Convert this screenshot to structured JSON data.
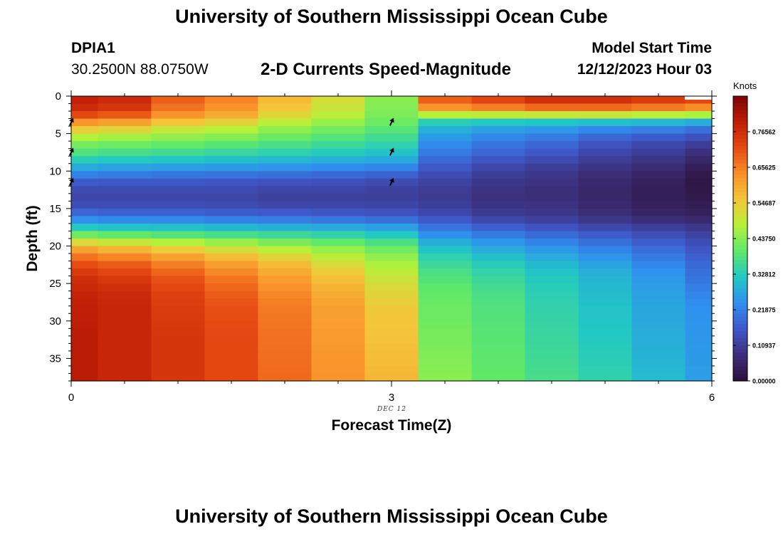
{
  "page": {
    "title": "University of Southern Mississippi Ocean Cube",
    "bottom_title": "University of Southern Mississippi Ocean Cube"
  },
  "station": {
    "id": "DPIA1",
    "coords": "30.2500N  88.0750W"
  },
  "subtitle": "2-D Currents Speed-Magnitude",
  "model": {
    "label": "Model Start Time",
    "value": "12/12/2023 Hour 03"
  },
  "colors": {
    "ramp": [
      "#2b0f36",
      "#3c2f7a",
      "#3f57c8",
      "#2f8ff0",
      "#22c8c4",
      "#5ee86a",
      "#b4f23a",
      "#f4c63a",
      "#f98f2a",
      "#e64a12",
      "#bf1d06",
      "#7a0403"
    ],
    "cap": "#ffffff",
    "arrow": "#000000"
  },
  "chart_data": {
    "type": "heatmap",
    "title": "2-D Currents Speed-Magnitude",
    "xlabel": "Forecast Time(Z)",
    "ylabel": "Depth (ft)",
    "x_ticks": [
      "0",
      "3",
      "6"
    ],
    "x_tick_values": [
      0,
      3,
      6
    ],
    "date_label": "DEC 12",
    "y_ticks": [
      "0",
      "5",
      "10",
      "15",
      "20",
      "25",
      "30",
      "35"
    ],
    "y_tick_values": [
      0,
      5,
      10,
      15,
      20,
      25,
      30,
      35
    ],
    "xlim": [
      0,
      6
    ],
    "ylim": [
      0,
      38
    ],
    "colorbar": {
      "label": "Knots",
      "ticks": [
        "0.00000",
        "0.10937",
        "0.21875",
        "0.32812",
        "0.43750",
        "0.54687",
        "0.65625",
        "0.76562"
      ],
      "range": [
        0,
        0.875
      ]
    },
    "time_columns": [
      0.25,
      0.75,
      1.25,
      1.75,
      2.25,
      2.75,
      3.25,
      3.75,
      4.25,
      4.75,
      5.25,
      5.75
    ],
    "profiles": {
      "depths": [
        0,
        2,
        3,
        4,
        6,
        8,
        9,
        10,
        11,
        12,
        14,
        16,
        17,
        18,
        20,
        22,
        24,
        26,
        28,
        32,
        38
      ],
      "surface": [
        0.8,
        0.76,
        0.68,
        0.58,
        0.44,
        0.36,
        0.3,
        0.25,
        0.19,
        0.14,
        0.12,
        0.2,
        0.28,
        0.36,
        0.58,
        0.7,
        0.76,
        0.78,
        0.79,
        0.8,
        0.8
      ],
      "columns": [
        {
          "vals": [
            0.78,
            0.74,
            0.66,
            0.56,
            0.43,
            0.35,
            0.29,
            0.24,
            0.18,
            0.14,
            0.12,
            0.19,
            0.27,
            0.35,
            0.55,
            0.68,
            0.74,
            0.77,
            0.78,
            0.78,
            0.78
          ]
        },
        {
          "vals": [
            0.7,
            0.66,
            0.6,
            0.52,
            0.42,
            0.34,
            0.29,
            0.23,
            0.18,
            0.14,
            0.12,
            0.19,
            0.27,
            0.34,
            0.52,
            0.64,
            0.7,
            0.73,
            0.74,
            0.75,
            0.75
          ]
        },
        {
          "vals": [
            0.66,
            0.62,
            0.57,
            0.5,
            0.41,
            0.33,
            0.28,
            0.23,
            0.17,
            0.14,
            0.12,
            0.18,
            0.26,
            0.33,
            0.49,
            0.6,
            0.66,
            0.69,
            0.71,
            0.72,
            0.72
          ]
        },
        {
          "vals": [
            0.58,
            0.55,
            0.51,
            0.46,
            0.39,
            0.32,
            0.27,
            0.22,
            0.17,
            0.13,
            0.11,
            0.18,
            0.25,
            0.32,
            0.46,
            0.56,
            0.61,
            0.64,
            0.66,
            0.67,
            0.68
          ]
        },
        {
          "vals": [
            0.52,
            0.5,
            0.47,
            0.43,
            0.37,
            0.31,
            0.26,
            0.21,
            0.16,
            0.13,
            0.11,
            0.17,
            0.24,
            0.31,
            0.43,
            0.51,
            0.56,
            0.59,
            0.61,
            0.62,
            0.63
          ]
        },
        {
          "vals": [
            0.44,
            0.43,
            0.42,
            0.4,
            0.35,
            0.3,
            0.25,
            0.2,
            0.15,
            0.12,
            0.11,
            0.16,
            0.23,
            0.29,
            0.4,
            0.46,
            0.5,
            0.53,
            0.55,
            0.56,
            0.58
          ]
        },
        {
          "vals": [
            0.72,
            0.6,
            0.36,
            0.3,
            0.24,
            0.2,
            0.17,
            0.15,
            0.13,
            0.11,
            0.1,
            0.14,
            0.18,
            0.22,
            0.3,
            0.35,
            0.38,
            0.4,
            0.41,
            0.42,
            0.44
          ]
        },
        {
          "vals": [
            0.76,
            0.62,
            0.36,
            0.28,
            0.21,
            0.17,
            0.14,
            0.12,
            0.1,
            0.09,
            0.08,
            0.11,
            0.15,
            0.19,
            0.27,
            0.32,
            0.35,
            0.37,
            0.38,
            0.39,
            0.4
          ]
        },
        {
          "vals": [
            0.8,
            0.64,
            0.36,
            0.27,
            0.19,
            0.15,
            0.12,
            0.1,
            0.09,
            0.08,
            0.08,
            0.1,
            0.13,
            0.17,
            0.24,
            0.29,
            0.32,
            0.33,
            0.34,
            0.35,
            0.37
          ]
        },
        {
          "vals": [
            0.8,
            0.64,
            0.36,
            0.25,
            0.16,
            0.12,
            0.1,
            0.08,
            0.07,
            0.06,
            0.06,
            0.08,
            0.11,
            0.15,
            0.21,
            0.26,
            0.29,
            0.3,
            0.31,
            0.32,
            0.34
          ]
        },
        {
          "vals": [
            0.78,
            0.62,
            0.35,
            0.24,
            0.14,
            0.1,
            0.08,
            0.06,
            0.05,
            0.04,
            0.04,
            0.06,
            0.09,
            0.13,
            0.18,
            0.22,
            0.25,
            0.26,
            0.27,
            0.28,
            0.3
          ]
        },
        {
          "vals": [
            0.76,
            0.6,
            0.34,
            0.22,
            0.12,
            0.07,
            0.05,
            0.03,
            0.02,
            0.02,
            0.03,
            0.05,
            0.08,
            0.11,
            0.15,
            0.18,
            0.2,
            0.22,
            0.24,
            0.25,
            0.26
          ]
        }
      ]
    },
    "vectors": [
      {
        "time": 0,
        "depth": 3.5,
        "direction": "north-northeast"
      },
      {
        "time": 0,
        "depth": 7.5,
        "direction": "north-northeast"
      },
      {
        "time": 0,
        "depth": 11.5,
        "direction": "north-northeast"
      },
      {
        "time": 3,
        "depth": 3.5,
        "direction": "north-northeast"
      },
      {
        "time": 3,
        "depth": 7.5,
        "direction": "north-northeast"
      },
      {
        "time": 3,
        "depth": 11.5,
        "direction": "north-northeast"
      }
    ]
  }
}
